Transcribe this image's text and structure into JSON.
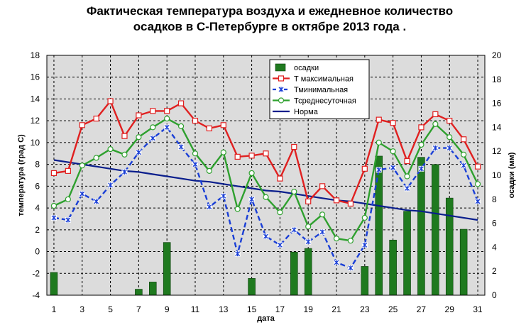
{
  "chart_data": {
    "type": "line",
    "title_line1": "Фактическая температура воздуха и ежедневное количество",
    "title_line2": "осадков в С-Петербурге в октябре 2013 года .",
    "xlabel": "дата",
    "ylabel_left": "температура (град С)",
    "ylabel_right": "осадки (мм)",
    "ylim_left": [
      -4,
      18
    ],
    "ylim_right": [
      0,
      20
    ],
    "xlim": [
      0.5,
      31.5
    ],
    "grid": true,
    "legend_position": "top-center",
    "x": [
      1,
      2,
      3,
      4,
      5,
      6,
      7,
      8,
      9,
      10,
      11,
      12,
      13,
      14,
      15,
      16,
      17,
      18,
      19,
      20,
      21,
      22,
      23,
      24,
      25,
      26,
      27,
      28,
      29,
      30,
      31
    ],
    "x_tick_labels": [
      "1",
      "3",
      "5",
      "7",
      "9",
      "11",
      "13",
      "15",
      "17",
      "19",
      "21",
      "23",
      "25",
      "27",
      "29",
      "31"
    ],
    "y_left_ticks": [
      -4,
      -2,
      0,
      2,
      4,
      6,
      8,
      10,
      12,
      14,
      16,
      18
    ],
    "y_right_ticks": [
      0,
      2,
      4,
      6,
      8,
      10,
      12,
      14,
      16,
      18,
      20
    ],
    "series": [
      {
        "name": "осадки",
        "type": "bar",
        "axis": "right",
        "color": "#1f7a1f",
        "values": [
          1.9,
          0,
          0,
          0,
          0,
          0,
          0.5,
          1.1,
          4.4,
          0,
          0,
          0,
          0,
          0,
          1.4,
          0,
          0,
          3.6,
          3.9,
          0,
          0,
          0,
          2.4,
          11.6,
          4.6,
          7.0,
          11.5,
          10.9,
          8.1,
          5.5,
          0
        ]
      },
      {
        "name": "Т максимальная",
        "type": "line",
        "axis": "left",
        "color": "#e02020",
        "marker": "square",
        "values": [
          7.2,
          7.4,
          11.6,
          12.2,
          13.8,
          10.6,
          12.5,
          12.9,
          12.9,
          13.6,
          12.0,
          11.3,
          11.6,
          8.7,
          8.8,
          9.0,
          6.7,
          9.6,
          4.6,
          6.0,
          4.7,
          4.4,
          7.6,
          12.1,
          11.8,
          8.3,
          11.4,
          12.6,
          12.0,
          10.3,
          7.8
        ]
      },
      {
        "name": "Тминимальная",
        "type": "line",
        "axis": "left",
        "color": "#1a3fd6",
        "marker": "star",
        "values": [
          3.1,
          2.9,
          5.3,
          4.6,
          6.1,
          7.3,
          9.1,
          10.4,
          11.4,
          9.6,
          8.0,
          4.1,
          5.1,
          -0.2,
          4.8,
          1.4,
          0.6,
          2.0,
          0.9,
          1.8,
          -1.0,
          -1.5,
          0.6,
          7.5,
          7.7,
          5.8,
          7.6,
          9.5,
          9.5,
          7.9,
          4.6
        ]
      },
      {
        "name": "Тсреднесуточная",
        "type": "line",
        "axis": "left",
        "color": "#2ea02e",
        "marker": "circle",
        "values": [
          4.2,
          4.8,
          7.9,
          8.6,
          9.4,
          8.9,
          10.5,
          11.4,
          12.2,
          11.5,
          9.0,
          7.4,
          9.1,
          3.9,
          7.2,
          5.0,
          3.6,
          5.5,
          2.3,
          3.4,
          1.2,
          1.0,
          3.1,
          10.0,
          9.2,
          6.9,
          9.8,
          11.7,
          10.5,
          8.9,
          6.2
        ]
      },
      {
        "name": "Норма",
        "type": "line",
        "axis": "left",
        "color": "#0a1e8c",
        "marker": "none",
        "values": [
          8.4,
          8.2,
          8.0,
          7.8,
          7.6,
          7.4,
          7.3,
          7.1,
          6.9,
          6.7,
          6.5,
          6.4,
          6.2,
          6.0,
          5.8,
          5.6,
          5.5,
          5.3,
          5.1,
          4.9,
          4.7,
          4.6,
          4.4,
          4.2,
          4.0,
          3.8,
          3.7,
          3.5,
          3.3,
          3.1,
          2.9
        ]
      }
    ],
    "legend": [
      "осадки",
      "Т максимальная",
      "Тминимальная",
      "Тсреднесуточная",
      "Норма"
    ]
  }
}
